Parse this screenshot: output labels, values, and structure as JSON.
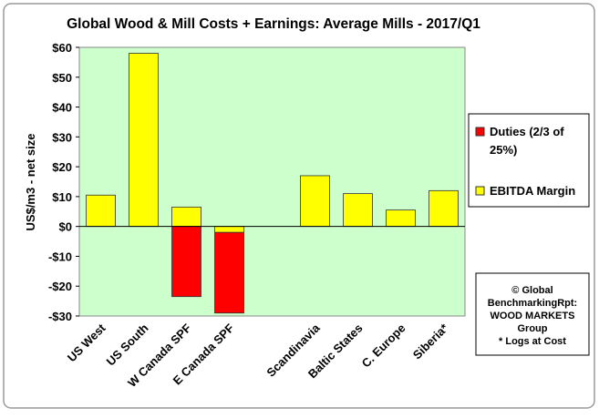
{
  "chart_data": {
    "type": "stacked-bar",
    "title": "Global Wood & Mill Costs + Earnings: Average Mills - 2017/Q1",
    "y_label": "US$/m3 - net size",
    "categories": [
      "US West",
      "US South",
      "W Canada SPF",
      "E Canada SPF",
      null,
      "Scandinavia",
      "Baltic States",
      "C. Europe",
      "Siberia*"
    ],
    "series": [
      {
        "name": "EBITDA Margin",
        "color": "#ffff00",
        "values": [
          10.5,
          58,
          6.5,
          -2,
          null,
          17,
          11,
          5.5,
          12
        ]
      },
      {
        "name": "Duties (2/3 of 25%)",
        "color": "#ff0000",
        "values": [
          null,
          null,
          -23.5,
          -27,
          null,
          null,
          null,
          null,
          null
        ]
      }
    ],
    "ylim": [
      -30,
      60
    ],
    "yticks": [
      {
        "value": -30,
        "label": "-$30"
      },
      {
        "value": -20,
        "label": "-$20"
      },
      {
        "value": -10,
        "label": "-$10"
      },
      {
        "value": 0,
        "label": "$0"
      },
      {
        "value": 10,
        "label": "$10"
      },
      {
        "value": 20,
        "label": "$20"
      },
      {
        "value": 30,
        "label": "$30"
      },
      {
        "value": 40,
        "label": "$40"
      },
      {
        "value": 50,
        "label": "$50"
      },
      {
        "value": 60,
        "label": "$60"
      }
    ],
    "plot_background": "#ccffcc",
    "note": [
      "© Global",
      "BenchmarkingRpt:",
      "WOOD MARKETS",
      "Group",
      "* Logs at Cost"
    ]
  }
}
